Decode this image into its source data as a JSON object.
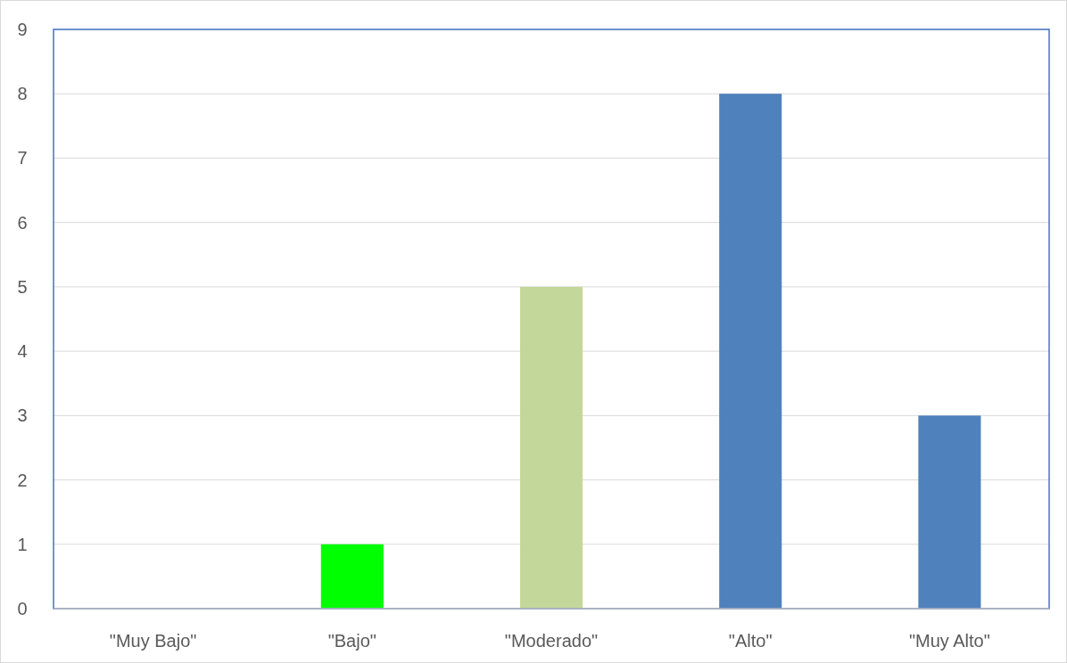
{
  "chart_data": {
    "type": "bar",
    "categories": [
      "\"Muy Bajo\"",
      "\"Bajo\"",
      "\"Moderado\"",
      "\"Alto\"",
      "\"Muy Alto\""
    ],
    "values": [
      0,
      1,
      5,
      8,
      3
    ],
    "colors": [
      "#4f81bd",
      "#00ff00",
      "#c4d79b",
      "#4f81bd",
      "#4f81bd"
    ],
    "ylim": [
      0,
      9
    ],
    "yticks": [
      0,
      1,
      2,
      3,
      4,
      5,
      6,
      7,
      8,
      9
    ],
    "grid": "y"
  }
}
